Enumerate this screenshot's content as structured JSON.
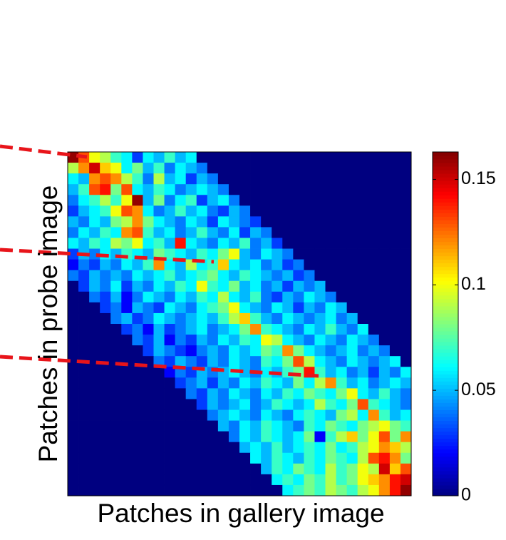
{
  "chart_data": {
    "type": "heatmap",
    "x_label": "Patches in gallery image",
    "y_label": "Patches in probe image",
    "colormap": "jet",
    "clim": [
      0,
      0.163
    ],
    "cticks": [
      0,
      0.05,
      0.1,
      0.15
    ],
    "z": [
      [
        0.16,
        0.13,
        0.1,
        0.09,
        0.07,
        0.06,
        0.03,
        0.06,
        0.05,
        0.07,
        0.05,
        0.06,
        0,
        0,
        0,
        0,
        0,
        0,
        0,
        0,
        0,
        0,
        0,
        0,
        0,
        0,
        0,
        0,
        0,
        0,
        0,
        0
      ],
      [
        0.09,
        0.12,
        0.15,
        0.11,
        0.1,
        0.06,
        0.08,
        0.05,
        0.07,
        0.04,
        0.06,
        0.05,
        0.04,
        0,
        0,
        0,
        0,
        0,
        0,
        0,
        0,
        0,
        0,
        0,
        0,
        0,
        0,
        0,
        0,
        0,
        0,
        0
      ],
      [
        0.06,
        0.05,
        0.12,
        0.13,
        0.12,
        0.09,
        0.07,
        0.04,
        0.09,
        0.05,
        0.06,
        0.03,
        0.05,
        0.04,
        0,
        0,
        0,
        0,
        0,
        0,
        0,
        0,
        0,
        0,
        0,
        0,
        0,
        0,
        0,
        0,
        0,
        0
      ],
      [
        0.05,
        0.07,
        0.13,
        0.14,
        0.08,
        0.13,
        0.06,
        0.05,
        0.07,
        0.06,
        0.04,
        0.05,
        0.06,
        0.05,
        0.04,
        0,
        0,
        0,
        0,
        0,
        0,
        0,
        0,
        0,
        0,
        0,
        0,
        0,
        0,
        0,
        0,
        0
      ],
      [
        0.04,
        0.06,
        0.07,
        0.09,
        0.07,
        0.1,
        0.16,
        0.05,
        0.08,
        0.04,
        0.06,
        0.07,
        0.03,
        0.05,
        0.06,
        0.04,
        0,
        0,
        0,
        0,
        0,
        0,
        0,
        0,
        0,
        0,
        0,
        0,
        0,
        0,
        0,
        0
      ],
      [
        0.03,
        0.05,
        0.06,
        0.07,
        0.1,
        0.13,
        0.12,
        0.06,
        0.04,
        0.05,
        0.07,
        0.05,
        0.06,
        0.04,
        0.03,
        0.05,
        0.04,
        0,
        0,
        0,
        0,
        0,
        0,
        0,
        0,
        0,
        0,
        0,
        0,
        0,
        0,
        0
      ],
      [
        0.05,
        0.04,
        0.06,
        0.05,
        0.08,
        0.09,
        0.12,
        0.08,
        0.06,
        0.05,
        0.04,
        0.06,
        0.05,
        0.03,
        0.06,
        0.05,
        0.04,
        0.03,
        0,
        0,
        0,
        0,
        0,
        0,
        0,
        0,
        0,
        0,
        0,
        0,
        0,
        0
      ],
      [
        0.04,
        0.06,
        0.05,
        0.07,
        0.06,
        0.12,
        0.13,
        0.07,
        0.05,
        0.06,
        0.04,
        0.05,
        0.07,
        0.05,
        0.04,
        0.06,
        0.03,
        0.05,
        0.04,
        0,
        0,
        0,
        0,
        0,
        0,
        0,
        0,
        0,
        0,
        0,
        0,
        0
      ],
      [
        0.06,
        0.05,
        0.07,
        0.06,
        0.09,
        0.08,
        0.1,
        0.06,
        0.07,
        0.05,
        0.14,
        0.06,
        0.05,
        0.04,
        0.06,
        0.05,
        0.07,
        0.04,
        0.05,
        0.03,
        0,
        0,
        0,
        0,
        0,
        0,
        0,
        0,
        0,
        0,
        0,
        0
      ],
      [
        0.03,
        0.05,
        0.04,
        0.06,
        0.05,
        0.07,
        0.06,
        0.05,
        0.08,
        0.07,
        0.06,
        0.05,
        0.07,
        0.06,
        0.08,
        0.1,
        0.05,
        0.04,
        0.06,
        0.05,
        0.04,
        0,
        0,
        0,
        0,
        0,
        0,
        0,
        0,
        0,
        0,
        0
      ],
      [
        0.02,
        0.04,
        0.03,
        0.05,
        0.04,
        0.06,
        0.05,
        0.07,
        0.12,
        0.06,
        0.05,
        0.09,
        0.06,
        0.07,
        0.11,
        0.06,
        0.05,
        0.06,
        0.04,
        0.05,
        0.03,
        0.04,
        0,
        0,
        0,
        0,
        0,
        0,
        0,
        0,
        0,
        0
      ],
      [
        0.04,
        0.03,
        0.05,
        0.04,
        0.05,
        0.04,
        0.06,
        0.05,
        0.06,
        0.07,
        0.05,
        0.06,
        0.07,
        0.08,
        0.06,
        0.05,
        0.07,
        0.06,
        0.05,
        0.04,
        0.05,
        0.03,
        0.04,
        0,
        0,
        0,
        0,
        0,
        0,
        0,
        0,
        0
      ],
      [
        0,
        0.03,
        0.05,
        0.04,
        0.06,
        0.03,
        0.05,
        0.04,
        0.06,
        0.05,
        0.07,
        0.06,
        0.1,
        0.07,
        0.06,
        0.08,
        0.05,
        0.06,
        0.04,
        0.05,
        0.03,
        0.05,
        0.04,
        0.05,
        0,
        0,
        0,
        0,
        0,
        0,
        0,
        0
      ],
      [
        0,
        0,
        0.04,
        0.03,
        0.05,
        0.02,
        0.04,
        0.06,
        0.05,
        0.04,
        0.06,
        0.05,
        0.07,
        0.06,
        0.09,
        0.06,
        0.05,
        0.07,
        0.04,
        0.03,
        0.05,
        0.04,
        0.06,
        0.05,
        0.04,
        0,
        0,
        0,
        0,
        0,
        0,
        0
      ],
      [
        0,
        0,
        0,
        0.03,
        0.04,
        0.02,
        0.05,
        0.04,
        0.03,
        0.06,
        0.05,
        0.04,
        0.06,
        0.07,
        0.08,
        0.1,
        0.06,
        0.05,
        0.04,
        0.06,
        0.05,
        0.03,
        0.05,
        0.04,
        0.06,
        0.05,
        0,
        0,
        0,
        0,
        0,
        0
      ],
      [
        0,
        0,
        0,
        0,
        0.04,
        0.05,
        0.03,
        0.04,
        0.06,
        0.05,
        0.04,
        0.05,
        0.06,
        0.05,
        0.07,
        0.09,
        0.11,
        0.07,
        0.05,
        0.04,
        0.06,
        0.05,
        0.04,
        0.05,
        0.06,
        0.04,
        0.05,
        0,
        0,
        0,
        0,
        0
      ],
      [
        0,
        0,
        0,
        0,
        0,
        0.03,
        0.04,
        0.02,
        0.05,
        0.03,
        0.04,
        0.05,
        0.06,
        0.04,
        0.05,
        0.06,
        0.08,
        0.12,
        0.07,
        0.06,
        0.05,
        0.04,
        0.06,
        0.05,
        0.07,
        0.05,
        0.04,
        0.06,
        0,
        0,
        0,
        0
      ],
      [
        0,
        0,
        0,
        0,
        0,
        0,
        0.04,
        0.03,
        0.05,
        0.02,
        0.04,
        0.03,
        0.05,
        0.04,
        0.06,
        0.05,
        0.07,
        0.06,
        0.1,
        0.09,
        0.06,
        0.05,
        0.04,
        0.06,
        0.05,
        0.04,
        0.06,
        0.05,
        0.04,
        0,
        0,
        0
      ],
      [
        0,
        0,
        0,
        0,
        0,
        0,
        0,
        0.03,
        0.05,
        0.04,
        0.03,
        0.02,
        0.04,
        0.05,
        0.04,
        0.06,
        0.05,
        0.06,
        0.08,
        0.07,
        0.12,
        0.08,
        0.06,
        0.05,
        0.04,
        0.05,
        0.06,
        0.04,
        0.05,
        0.04,
        0,
        0
      ],
      [
        0,
        0,
        0,
        0,
        0,
        0,
        0,
        0,
        0.04,
        0.03,
        0.05,
        0.04,
        0.03,
        0.05,
        0.04,
        0.06,
        0.05,
        0.04,
        0.07,
        0.06,
        0.08,
        0.13,
        0.09,
        0.06,
        0.05,
        0.04,
        0.06,
        0.05,
        0.04,
        0.05,
        0.06,
        0
      ],
      [
        0,
        0,
        0,
        0,
        0,
        0,
        0,
        0,
        0,
        0.02,
        0.04,
        0.03,
        0.05,
        0.04,
        0.05,
        0.06,
        0.05,
        0.04,
        0.06,
        0.05,
        0.07,
        0.08,
        0.14,
        0.07,
        0.05,
        0.06,
        0.04,
        0.05,
        0.03,
        0.05,
        0.04,
        0.06
      ],
      [
        0,
        0,
        0,
        0,
        0,
        0,
        0,
        0,
        0,
        0,
        0.03,
        0.04,
        0.05,
        0.03,
        0.05,
        0.04,
        0.06,
        0.05,
        0.07,
        0.06,
        0.05,
        0.08,
        0.06,
        0.09,
        0.12,
        0.07,
        0.05,
        0.06,
        0.04,
        0.05,
        0.06,
        0.05
      ],
      [
        0,
        0,
        0,
        0,
        0,
        0,
        0,
        0,
        0,
        0,
        0,
        0.04,
        0.03,
        0.05,
        0.04,
        0.06,
        0.05,
        0.04,
        0.06,
        0.05,
        0.07,
        0.06,
        0.08,
        0.07,
        0.06,
        0.08,
        0.1,
        0.06,
        0.05,
        0.07,
        0.05,
        0.04
      ],
      [
        0,
        0,
        0,
        0,
        0,
        0,
        0,
        0,
        0,
        0,
        0,
        0,
        0.03,
        0.05,
        0.04,
        0.05,
        0.06,
        0.04,
        0.05,
        0.07,
        0.06,
        0.05,
        0.06,
        0.09,
        0.07,
        0.06,
        0.08,
        0.13,
        0.07,
        0.06,
        0.05,
        0.04
      ],
      [
        0,
        0,
        0,
        0,
        0,
        0,
        0,
        0,
        0,
        0,
        0,
        0,
        0,
        0.04,
        0.05,
        0.06,
        0.05,
        0.04,
        0.06,
        0.05,
        0.04,
        0.06,
        0.07,
        0.06,
        0.05,
        0.08,
        0.09,
        0.06,
        0.12,
        0.07,
        0.05,
        0.06
      ],
      [
        0,
        0,
        0,
        0,
        0,
        0,
        0,
        0,
        0,
        0,
        0,
        0,
        0,
        0,
        0.05,
        0.04,
        0.06,
        0.05,
        0.07,
        0.06,
        0.05,
        0.04,
        0.07,
        0.06,
        0.08,
        0.07,
        0.06,
        0.08,
        0.09,
        0.1,
        0.08,
        0.07
      ],
      [
        0,
        0,
        0,
        0,
        0,
        0,
        0,
        0,
        0,
        0,
        0,
        0,
        0,
        0,
        0,
        0.04,
        0.06,
        0.05,
        0.07,
        0.06,
        0.05,
        0.06,
        0.08,
        0.02,
        0.07,
        0.09,
        0.11,
        0.08,
        0.1,
        0.13,
        0.08,
        0.12
      ],
      [
        0,
        0,
        0,
        0,
        0,
        0,
        0,
        0,
        0,
        0,
        0,
        0,
        0,
        0,
        0,
        0,
        0.05,
        0.06,
        0.05,
        0.07,
        0.05,
        0.06,
        0.07,
        0.06,
        0.08,
        0.06,
        0.07,
        0.09,
        0.1,
        0.12,
        0.11,
        0.09
      ],
      [
        0,
        0,
        0,
        0,
        0,
        0,
        0,
        0,
        0,
        0,
        0,
        0,
        0,
        0,
        0,
        0,
        0,
        0.06,
        0.05,
        0.07,
        0.06,
        0.05,
        0.07,
        0.06,
        0.08,
        0.07,
        0.06,
        0.09,
        0.13,
        0.14,
        0.12,
        0.08
      ],
      [
        0,
        0,
        0,
        0,
        0,
        0,
        0,
        0,
        0,
        0,
        0,
        0,
        0,
        0,
        0,
        0,
        0,
        0,
        0.05,
        0.07,
        0.06,
        0.08,
        0.07,
        0.06,
        0.09,
        0.07,
        0.08,
        0.1,
        0.09,
        0.15,
        0.11,
        0.13
      ],
      [
        0,
        0,
        0,
        0,
        0,
        0,
        0,
        0,
        0,
        0,
        0,
        0,
        0,
        0,
        0,
        0,
        0,
        0,
        0,
        0.06,
        0.07,
        0.06,
        0.08,
        0.07,
        0.09,
        0.07,
        0.08,
        0.1,
        0.11,
        0.12,
        0.14,
        0.15
      ],
      [
        0,
        0,
        0,
        0,
        0,
        0,
        0,
        0,
        0,
        0,
        0,
        0,
        0,
        0,
        0,
        0,
        0,
        0,
        0,
        0,
        0.06,
        0.07,
        0.08,
        0.07,
        0.09,
        0.08,
        0.07,
        0.09,
        0.1,
        0.12,
        0.14,
        0.16
      ]
    ]
  }
}
